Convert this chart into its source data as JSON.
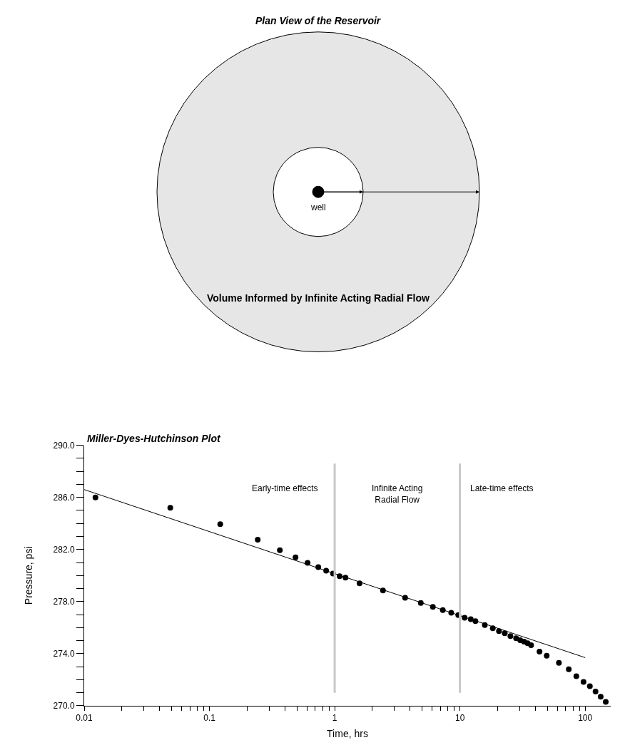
{
  "chart_data": [
    {
      "type": "other",
      "title": "Plan View of the Reservoir",
      "annotations": [
        "well",
        "Volume Informed by Infinite Acting Radial Flow"
      ]
    },
    {
      "type": "scatter",
      "title": "Miller-Dyes-Hutchinson Plot",
      "xlabel": "Time, hrs",
      "ylabel": "Pressure, psi",
      "log": "x",
      "marker": "circle",
      "xlim": [
        0.01,
        160
      ],
      "ylim": [
        270,
        290
      ],
      "xticks": [
        0.01,
        {
          "value": 0.02,
          "label": null
        },
        {
          "value": 0.03,
          "label": null
        },
        {
          "value": 0.04,
          "label": null
        },
        {
          "value": 0.05,
          "label": null
        },
        {
          "value": 0.06,
          "label": null
        },
        {
          "value": 0.07,
          "label": null
        },
        {
          "value": 0.08,
          "label": null
        },
        {
          "value": 0.09,
          "label": null
        },
        0.1,
        {
          "value": 0.2,
          "label": null
        },
        {
          "value": 0.3,
          "label": null
        },
        {
          "value": 0.4,
          "label": null
        },
        {
          "value": 0.5,
          "label": null
        },
        {
          "value": 0.6,
          "label": null
        },
        {
          "value": 0.7,
          "label": null
        },
        {
          "value": 0.8,
          "label": null
        },
        {
          "value": 0.9,
          "label": null
        },
        1,
        {
          "value": 2,
          "label": null
        },
        {
          "value": 3,
          "label": null
        },
        {
          "value": 4,
          "label": null
        },
        {
          "value": 5,
          "label": null
        },
        {
          "value": 6,
          "label": null
        },
        {
          "value": 7,
          "label": null
        },
        {
          "value": 8,
          "label": null
        },
        {
          "value": 9,
          "label": null
        },
        10,
        {
          "value": 20,
          "label": null
        },
        {
          "value": 30,
          "label": null
        },
        {
          "value": 40,
          "label": null
        },
        {
          "value": 50,
          "label": null
        },
        {
          "value": 60,
          "label": null
        },
        {
          "value": 70,
          "label": null
        },
        {
          "value": 80,
          "label": null
        },
        {
          "value": 90,
          "label": null
        },
        100
      ],
      "yticks": [
        {
          "value": 270,
          "label": "270.0"
        },
        {
          "value": 271,
          "label": null
        },
        {
          "value": 272,
          "label": null
        },
        {
          "value": 273,
          "label": null
        },
        {
          "value": 274,
          "label": "274.0"
        },
        {
          "value": 275,
          "label": null
        },
        {
          "value": 276,
          "label": null
        },
        {
          "value": 277,
          "label": null
        },
        {
          "value": 278,
          "label": "278.0"
        },
        {
          "value": 279,
          "label": null
        },
        {
          "value": 280,
          "label": null
        },
        {
          "value": 281,
          "label": null
        },
        {
          "value": 282,
          "label": "282.0"
        },
        {
          "value": 283,
          "label": null
        },
        {
          "value": 284,
          "label": null
        },
        {
          "value": 285,
          "label": null
        },
        {
          "value": 286,
          "label": "286.0"
        },
        {
          "value": 287,
          "label": null
        },
        {
          "value": 288,
          "label": null
        },
        {
          "value": 289,
          "label": null
        },
        {
          "value": 290,
          "label": "290.0"
        }
      ],
      "series": [
        {
          "type": "scatter",
          "color": "#000000",
          "x": [
            0.0123,
            0.0487,
            0.122,
            0.243,
            0.365,
            0.487,
            0.608,
            0.74,
            0.855,
            0.97,
            1.095,
            1.22,
            1.58,
            2.43,
            3.65,
            4.87,
            6.08,
            7.3,
            8.52,
            9.7,
            10.9,
            12.2,
            13.3,
            15.8,
            18.3,
            20.5,
            22.8,
            25.3,
            28.1,
            30.3,
            32.5,
            34.7,
            37,
            43.2,
            49.3,
            61.7,
            74,
            85,
            97,
            109,
            121,
            133,
            146
          ],
          "values": [
            286.0,
            285.2,
            283.95,
            282.76,
            281.95,
            281.4,
            280.97,
            280.65,
            280.38,
            280.16,
            279.95,
            279.84,
            279.4,
            278.86,
            278.3,
            277.9,
            277.6,
            277.35,
            277.14,
            276.97,
            276.76,
            276.65,
            276.5,
            276.2,
            275.95,
            275.73,
            275.57,
            275.35,
            275.19,
            275.03,
            274.92,
            274.8,
            274.65,
            274.16,
            273.84,
            273.3,
            272.8,
            272.27,
            271.84,
            271.5,
            271.1,
            270.7,
            270.3
          ]
        },
        {
          "type": "line",
          "marker": "none",
          "color": "#000000",
          "x": [
            0.01,
            100
          ],
          "values": [
            286.6,
            273.7
          ]
        }
      ],
      "ref_lines": [
        {
          "axis": "x",
          "value": 1,
          "color": "#c8c8c8"
        },
        {
          "axis": "x",
          "value": 10,
          "color": "#c8c8c8"
        }
      ],
      "annotations": [
        "Early-time effects",
        "Infinite Acting\nRadial Flow",
        "Late-time effects"
      ]
    }
  ]
}
